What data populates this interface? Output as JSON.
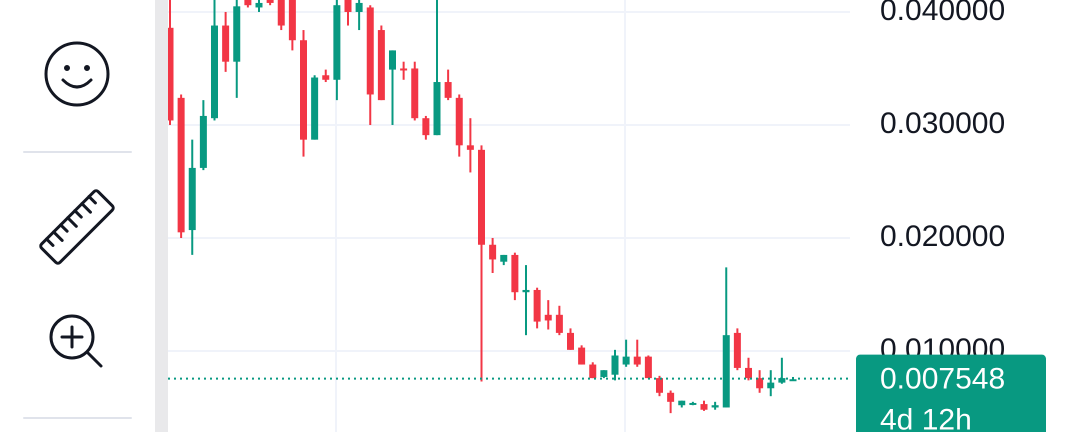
{
  "chart_data": {
    "type": "candlestick",
    "open": [
      0.0386,
      0.0324,
      0.0207,
      0.0262,
      0.0306,
      0.0388,
      0.0356,
      0.0411,
      0.0404,
      0.0411,
      0.0411,
      0.0411,
      0.0375,
      0.0287,
      0.0344,
      0.034,
      0.0411,
      0.04,
      0.0404,
      0.0384,
      0.0349,
      0.035,
      0.035,
      0.0306,
      0.0291,
      0.0338,
      0.0324,
      0.0282,
      0.0278,
      0.0194,
      0.0179,
      0.0185,
      0.0152,
      0.0154,
      0.0132,
      0.0132,
      0.0116,
      0.0103,
      0.0088,
      0.0077,
      0.0079,
      0.0088,
      0.0095,
      0.0095,
      0.0076,
      0.0063,
      0.0052,
      0.0053,
      0.0053,
      0.005,
      0.005,
      0.0116,
      0.0085,
      0.0076,
      0.0067,
      0.0072,
      0.0074
    ],
    "high": [
      0.0411,
      0.0327,
      0.0287,
      0.0322,
      0.0411,
      0.04,
      0.0411,
      0.0411,
      0.0411,
      0.0411,
      0.0411,
      0.0411,
      0.0384,
      0.0344,
      0.0349,
      0.0411,
      0.0411,
      0.0411,
      0.0406,
      0.0388,
      0.0366,
      0.0356,
      0.0356,
      0.0308,
      0.0411,
      0.0349,
      0.0327,
      0.0306,
      0.0282,
      0.02,
      0.0185,
      0.0187,
      0.0176,
      0.0156,
      0.0145,
      0.014,
      0.012,
      0.0105,
      0.009,
      0.0083,
      0.0101,
      0.011,
      0.011,
      0.0096,
      0.0078,
      0.0065,
      0.0056,
      0.0055,
      0.0056,
      0.0055,
      0.0174,
      0.012,
      0.0094,
      0.0083,
      0.0083,
      0.0094,
      0.0077
    ],
    "low": [
      0.03,
      0.02,
      0.0185,
      0.026,
      0.0304,
      0.0347,
      0.0324,
      0.0404,
      0.04,
      0.0406,
      0.0384,
      0.0366,
      0.0272,
      0.0287,
      0.0338,
      0.0322,
      0.0388,
      0.0384,
      0.03,
      0.0322,
      0.03,
      0.034,
      0.0304,
      0.0287,
      0.0291,
      0.0322,
      0.0272,
      0.0258,
      0.0073,
      0.0169,
      0.0176,
      0.0145,
      0.0114,
      0.012,
      0.0119,
      0.0114,
      0.0101,
      0.0088,
      0.0076,
      0.0076,
      0.0074,
      0.0086,
      0.0086,
      0.0076,
      0.006,
      0.0045,
      0.005,
      0.0052,
      0.0047,
      0.0048,
      0.005,
      0.0083,
      0.0074,
      0.0063,
      0.006,
      0.0071,
      0.0074
    ],
    "close": [
      0.0304,
      0.0205,
      0.0262,
      0.0308,
      0.0388,
      0.0356,
      0.0405,
      0.0406,
      0.0408,
      0.0408,
      0.0388,
      0.0375,
      0.0287,
      0.0342,
      0.034,
      0.0406,
      0.04,
      0.0408,
      0.0327,
      0.0322,
      0.0366,
      0.0349,
      0.0306,
      0.0291,
      0.0338,
      0.0324,
      0.0282,
      0.0278,
      0.0194,
      0.0181,
      0.0185,
      0.0152,
      0.0154,
      0.0126,
      0.0127,
      0.0116,
      0.0101,
      0.0088,
      0.0076,
      0.0083,
      0.0096,
      0.0095,
      0.0088,
      0.0076,
      0.0063,
      0.0055,
      0.0056,
      0.0054,
      0.0048,
      0.0052,
      0.0114,
      0.0085,
      0.0076,
      0.0067,
      0.0072,
      0.0076,
      0.0075
    ],
    "up_color": "#089981",
    "down_color": "#f23645",
    "ylim": [
      0.00283,
      0.04106
    ],
    "yticks": [
      {
        "value": 0.01,
        "label": "0.010000"
      },
      {
        "value": 0.02,
        "label": "0.020000"
      },
      {
        "value": 0.03,
        "label": "0.030000"
      },
      {
        "value": 0.04,
        "label": "0.040000"
      }
    ],
    "grid": true,
    "last_price": 0.007548,
    "countdown": "4d 12h"
  }
}
